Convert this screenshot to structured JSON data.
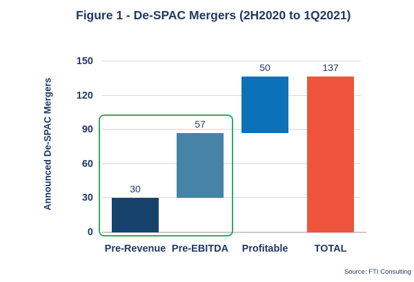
{
  "chart_data": {
    "type": "bar",
    "subtype": "waterfall",
    "title": "Figure 1 - De-SPAC Mergers (2H2020 to 1Q2021)",
    "ylabel": "Announced De-SPAC Mergers",
    "xlabel": "",
    "categories": [
      "Pre-Revenue",
      "Pre-EBITDA",
      "Profitable",
      "TOTAL"
    ],
    "values": [
      30,
      57,
      50,
      137
    ],
    "segments": [
      {
        "category": "Pre-Revenue",
        "value": 30,
        "start": 0,
        "end": 30,
        "color": "#17426B"
      },
      {
        "category": "Pre-EBITDA",
        "value": 57,
        "start": 30,
        "end": 87,
        "color": "#4683A6"
      },
      {
        "category": "Profitable",
        "value": 50,
        "start": 87,
        "end": 137,
        "color": "#0B72B9"
      },
      {
        "category": "TOTAL",
        "value": 137,
        "start": 0,
        "end": 137,
        "color": "#F0543C"
      }
    ],
    "ylim": [
      0,
      150
    ],
    "yticks": [
      0,
      30,
      60,
      90,
      120,
      150
    ],
    "grid": true,
    "legend": false,
    "highlight_box": {
      "around": [
        "Pre-Revenue",
        "Pre-EBITDA"
      ],
      "color": "#2BAD5F"
    },
    "source": "Source: FTI Consulting",
    "colors": {
      "text_navy": "#1F3864",
      "gridline": "#D9D9D9",
      "axis_line": "#C9C9C9",
      "highlight_green": "#2BAD5F"
    }
  }
}
